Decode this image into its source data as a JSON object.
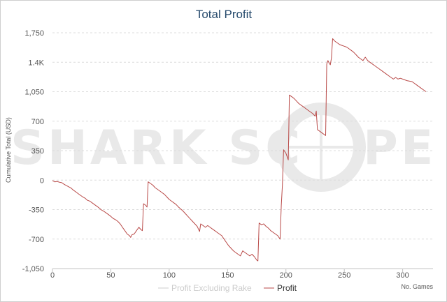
{
  "chart_data": {
    "type": "line",
    "title": "Total Profit",
    "xlabel": "No. Games",
    "ylabel": "Cumulative Total (USD)",
    "xlim": [
      0,
      326
    ],
    "ylim": [
      -1050,
      1750
    ],
    "x_ticks": [
      0,
      50,
      100,
      150,
      200,
      250,
      300
    ],
    "x_tick_labels": [
      "0",
      "50",
      "100",
      "150",
      "200",
      "250",
      "300"
    ],
    "y_ticks": [
      -1050,
      -700,
      -350,
      0,
      350,
      700,
      1050,
      1400,
      1750
    ],
    "y_tick_labels": [
      "-1,050",
      "-700",
      "-350",
      "0",
      "350",
      "700",
      "1,050",
      "1.4K",
      "1,750"
    ],
    "grid": true,
    "legend_position": "bottom-center",
    "series": [
      {
        "name": "Profit Excluding Rake",
        "color": "#cccccc",
        "visible": false,
        "points": []
      },
      {
        "name": "Profit",
        "color": "#b94a48",
        "visible": true,
        "points": [
          [
            0,
            -5
          ],
          [
            2,
            -20
          ],
          [
            4,
            -15
          ],
          [
            6,
            -25
          ],
          [
            8,
            -30
          ],
          [
            10,
            -50
          ],
          [
            12,
            -65
          ],
          [
            14,
            -80
          ],
          [
            16,
            -95
          ],
          [
            18,
            -120
          ],
          [
            20,
            -140
          ],
          [
            22,
            -160
          ],
          [
            24,
            -180
          ],
          [
            26,
            -200
          ],
          [
            28,
            -215
          ],
          [
            30,
            -240
          ],
          [
            32,
            -250
          ],
          [
            34,
            -270
          ],
          [
            36,
            -290
          ],
          [
            38,
            -310
          ],
          [
            40,
            -330
          ],
          [
            42,
            -355
          ],
          [
            44,
            -370
          ],
          [
            46,
            -390
          ],
          [
            48,
            -410
          ],
          [
            50,
            -430
          ],
          [
            52,
            -455
          ],
          [
            54,
            -470
          ],
          [
            56,
            -490
          ],
          [
            58,
            -520
          ],
          [
            60,
            -560
          ],
          [
            62,
            -600
          ],
          [
            64,
            -640
          ],
          [
            66,
            -660
          ],
          [
            67,
            -680
          ],
          [
            68,
            -650
          ],
          [
            70,
            -640
          ],
          [
            72,
            -600
          ],
          [
            74,
            -560
          ],
          [
            76,
            -590
          ],
          [
            77,
            -600
          ],
          [
            78,
            -280
          ],
          [
            80,
            -300
          ],
          [
            81,
            -320
          ],
          [
            82,
            -20
          ],
          [
            84,
            -40
          ],
          [
            86,
            -60
          ],
          [
            88,
            -90
          ],
          [
            90,
            -110
          ],
          [
            92,
            -130
          ],
          [
            94,
            -150
          ],
          [
            96,
            -170
          ],
          [
            98,
            -200
          ],
          [
            100,
            -230
          ],
          [
            102,
            -250
          ],
          [
            104,
            -270
          ],
          [
            106,
            -290
          ],
          [
            108,
            -320
          ],
          [
            110,
            -345
          ],
          [
            112,
            -370
          ],
          [
            114,
            -400
          ],
          [
            116,
            -430
          ],
          [
            118,
            -460
          ],
          [
            120,
            -490
          ],
          [
            122,
            -520
          ],
          [
            124,
            -550
          ],
          [
            126,
            -610
          ],
          [
            127,
            -520
          ],
          [
            129,
            -540
          ],
          [
            131,
            -560
          ],
          [
            133,
            -540
          ],
          [
            135,
            -560
          ],
          [
            137,
            -580
          ],
          [
            139,
            -600
          ],
          [
            141,
            -620
          ],
          [
            143,
            -640
          ],
          [
            145,
            -660
          ],
          [
            147,
            -700
          ],
          [
            149,
            -740
          ],
          [
            151,
            -780
          ],
          [
            153,
            -810
          ],
          [
            155,
            -840
          ],
          [
            157,
            -860
          ],
          [
            159,
            -880
          ],
          [
            161,
            -900
          ],
          [
            163,
            -840
          ],
          [
            165,
            -860
          ],
          [
            167,
            -880
          ],
          [
            169,
            -900
          ],
          [
            171,
            -880
          ],
          [
            173,
            -910
          ],
          [
            175,
            -950
          ],
          [
            176,
            -960
          ],
          [
            177,
            -510
          ],
          [
            179,
            -530
          ],
          [
            181,
            -520
          ],
          [
            183,
            -550
          ],
          [
            185,
            -570
          ],
          [
            187,
            -600
          ],
          [
            189,
            -620
          ],
          [
            191,
            -640
          ],
          [
            193,
            -660
          ],
          [
            195,
            -700
          ],
          [
            196,
            -300
          ],
          [
            197,
            -60
          ],
          [
            198,
            360
          ],
          [
            200,
            320
          ],
          [
            201,
            280
          ],
          [
            202,
            240
          ],
          [
            203,
            1010
          ],
          [
            205,
            990
          ],
          [
            207,
            970
          ],
          [
            209,
            940
          ],
          [
            211,
            910
          ],
          [
            213,
            890
          ],
          [
            215,
            870
          ],
          [
            217,
            850
          ],
          [
            219,
            830
          ],
          [
            221,
            810
          ],
          [
            223,
            790
          ],
          [
            225,
            760
          ],
          [
            226,
            820
          ],
          [
            227,
            600
          ],
          [
            229,
            580
          ],
          [
            231,
            560
          ],
          [
            233,
            540
          ],
          [
            234,
            530
          ],
          [
            235,
            1380
          ],
          [
            236,
            1420
          ],
          [
            237,
            1390
          ],
          [
            238,
            1370
          ],
          [
            239,
            1450
          ],
          [
            240,
            1680
          ],
          [
            242,
            1650
          ],
          [
            244,
            1630
          ],
          [
            246,
            1610
          ],
          [
            248,
            1600
          ],
          [
            250,
            1590
          ],
          [
            252,
            1580
          ],
          [
            254,
            1560
          ],
          [
            256,
            1540
          ],
          [
            258,
            1520
          ],
          [
            260,
            1490
          ],
          [
            262,
            1460
          ],
          [
            264,
            1440
          ],
          [
            266,
            1420
          ],
          [
            268,
            1460
          ],
          [
            270,
            1420
          ],
          [
            272,
            1400
          ],
          [
            274,
            1380
          ],
          [
            276,
            1360
          ],
          [
            278,
            1340
          ],
          [
            280,
            1320
          ],
          [
            282,
            1300
          ],
          [
            284,
            1280
          ],
          [
            286,
            1260
          ],
          [
            288,
            1240
          ],
          [
            290,
            1220
          ],
          [
            292,
            1200
          ],
          [
            294,
            1220
          ],
          [
            296,
            1200
          ],
          [
            298,
            1210
          ],
          [
            300,
            1200
          ],
          [
            302,
            1190
          ],
          [
            304,
            1180
          ],
          [
            306,
            1175
          ],
          [
            308,
            1170
          ],
          [
            310,
            1150
          ],
          [
            312,
            1130
          ],
          [
            314,
            1110
          ],
          [
            316,
            1090
          ],
          [
            318,
            1070
          ],
          [
            320,
            1050
          ]
        ]
      }
    ],
    "watermark": "SHARK SCOPE"
  },
  "colors": {
    "title": "#274b6d",
    "profit_line": "#b94a48",
    "rake_line": "#cccccc",
    "legend_inactive": "#cccccc",
    "legend_active": "#333333",
    "watermark": "#e9e9e9"
  }
}
